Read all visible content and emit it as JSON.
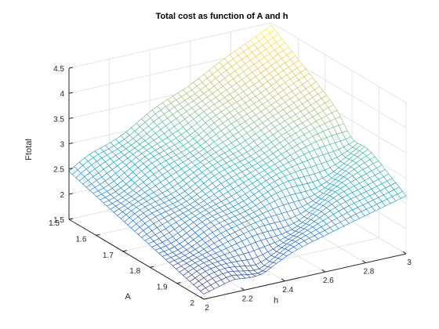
{
  "chart_data": {
    "type": "surface",
    "title": "Total cost as function of A and h",
    "xlabel": "h",
    "ylabel": "A",
    "zlabel": "Ftotal",
    "xlim": [
      2,
      3
    ],
    "ylim": [
      1.5,
      2
    ],
    "zlim": [
      1.5,
      4.5
    ],
    "x_ticks": [
      "2",
      "2.2",
      "2.4",
      "2.6",
      "2.8",
      "3"
    ],
    "y_ticks": [
      "1.5",
      "1.6",
      "1.7",
      "1.8",
      "1.9",
      "2"
    ],
    "z_ticks": [
      "1.5",
      "2",
      "2.5",
      "3",
      "3.5",
      "4",
      "4.5"
    ],
    "grid": true,
    "colormap": "parula",
    "colormap_colors": [
      "#352a87",
      "#0f5cdd",
      "#1481d6",
      "#06a4ca",
      "#2eb7a4",
      "#87bf77",
      "#d1bb59",
      "#fec832",
      "#f9fb0e"
    ],
    "grid_size": [
      40,
      40
    ],
    "corner_values": [
      {
        "h": 2.0,
        "A": 1.5,
        "Ftotal": 2.45
      },
      {
        "h": 2.0,
        "A": 2.0,
        "Ftotal": 1.6
      },
      {
        "h": 3.0,
        "A": 1.5,
        "Ftotal": 4.45
      },
      {
        "h": 3.0,
        "A": 2.0,
        "Ftotal": 2.65
      }
    ],
    "ridge_valley": {
      "h_start": 2.2,
      "A_start": 2.0,
      "h_end": 3.0,
      "A_end": 1.8
    }
  }
}
